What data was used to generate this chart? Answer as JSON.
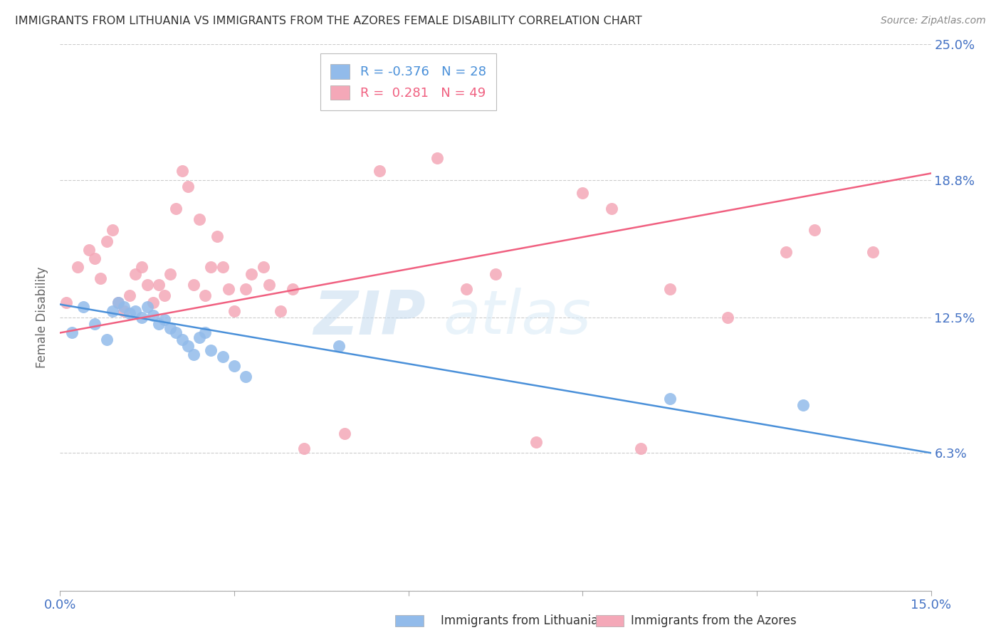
{
  "title": "IMMIGRANTS FROM LITHUANIA VS IMMIGRANTS FROM THE AZORES FEMALE DISABILITY CORRELATION CHART",
  "source": "Source: ZipAtlas.com",
  "ylabel": "Female Disability",
  "yticks": [
    0.0,
    0.063,
    0.125,
    0.188,
    0.25
  ],
  "ytick_labels": [
    "",
    "6.3%",
    "12.5%",
    "18.8%",
    "25.0%"
  ],
  "xticks": [
    0.0,
    0.03,
    0.06,
    0.09,
    0.12,
    0.15
  ],
  "xlim": [
    0.0,
    0.15
  ],
  "ylim": [
    0.0,
    0.25
  ],
  "legend_R1": "-0.376",
  "legend_N1": "28",
  "legend_R2": "0.281",
  "legend_N2": "49",
  "label1": "Immigrants from Lithuania",
  "label2": "Immigrants from the Azores",
  "color1": "#92BBEA",
  "color2": "#F4A8B8",
  "line_color1": "#4A90D9",
  "line_color2": "#F06080",
  "background_color": "#FFFFFF",
  "watermark": "ZIPatlas",
  "axis_label_color": "#4472C4",
  "scatter1_x": [
    0.002,
    0.004,
    0.006,
    0.008,
    0.009,
    0.01,
    0.011,
    0.012,
    0.013,
    0.014,
    0.015,
    0.016,
    0.017,
    0.018,
    0.019,
    0.02,
    0.021,
    0.022,
    0.023,
    0.024,
    0.025,
    0.026,
    0.028,
    0.03,
    0.032,
    0.048,
    0.105,
    0.128
  ],
  "scatter1_y": [
    0.118,
    0.13,
    0.122,
    0.115,
    0.128,
    0.132,
    0.13,
    0.127,
    0.128,
    0.125,
    0.13,
    0.126,
    0.122,
    0.124,
    0.12,
    0.118,
    0.115,
    0.112,
    0.108,
    0.116,
    0.118,
    0.11,
    0.107,
    0.103,
    0.098,
    0.112,
    0.088,
    0.085
  ],
  "scatter2_x": [
    0.001,
    0.003,
    0.005,
    0.006,
    0.007,
    0.008,
    0.009,
    0.01,
    0.011,
    0.012,
    0.013,
    0.014,
    0.015,
    0.016,
    0.017,
    0.018,
    0.019,
    0.02,
    0.021,
    0.022,
    0.023,
    0.024,
    0.025,
    0.026,
    0.027,
    0.028,
    0.029,
    0.03,
    0.032,
    0.033,
    0.035,
    0.036,
    0.038,
    0.04,
    0.042,
    0.049,
    0.055,
    0.065,
    0.07,
    0.075,
    0.082,
    0.09,
    0.095,
    0.1,
    0.105,
    0.115,
    0.125,
    0.13,
    0.14
  ],
  "scatter2_y": [
    0.132,
    0.148,
    0.156,
    0.152,
    0.143,
    0.16,
    0.165,
    0.132,
    0.128,
    0.135,
    0.145,
    0.148,
    0.14,
    0.132,
    0.14,
    0.135,
    0.145,
    0.175,
    0.192,
    0.185,
    0.14,
    0.17,
    0.135,
    0.148,
    0.162,
    0.148,
    0.138,
    0.128,
    0.138,
    0.145,
    0.148,
    0.14,
    0.128,
    0.138,
    0.065,
    0.072,
    0.192,
    0.198,
    0.138,
    0.145,
    0.068,
    0.182,
    0.175,
    0.065,
    0.138,
    0.125,
    0.155,
    0.165,
    0.155
  ],
  "line1_x0": 0.0,
  "line1_y0": 0.131,
  "line1_x1": 0.15,
  "line1_y1": 0.063,
  "line2_x0": 0.0,
  "line2_y0": 0.118,
  "line2_x1": 0.15,
  "line2_y1": 0.191
}
